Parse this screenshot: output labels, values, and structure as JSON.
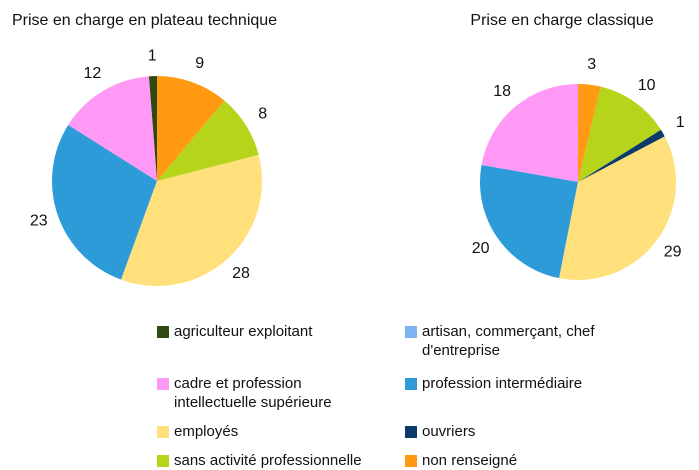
{
  "chart_data": [
    {
      "type": "pie",
      "title": "Prise en charge en plateau technique",
      "categories": [
        "agriculteur exploitant",
        "artisan, commerçant, chef d'entreprise",
        "cadre et profession intellectuelle supérieure",
        "profession intermédiaire",
        "employés",
        "ouvriers",
        "sans activité professionnelle",
        "non renseigné"
      ],
      "colors": [
        "#2f4a10",
        "#7fb3f0",
        "#ff99f5",
        "#2e9bd9",
        "#ffe07a",
        "#0b3b6b",
        "#b5d41a",
        "#ff9a12"
      ],
      "values": [
        1,
        0,
        12,
        23,
        28,
        0,
        8,
        9
      ]
    },
    {
      "type": "pie",
      "title": "Prise en charge classique",
      "values": [
        0,
        0,
        18,
        20,
        29,
        1,
        10,
        3
      ]
    }
  ]
}
